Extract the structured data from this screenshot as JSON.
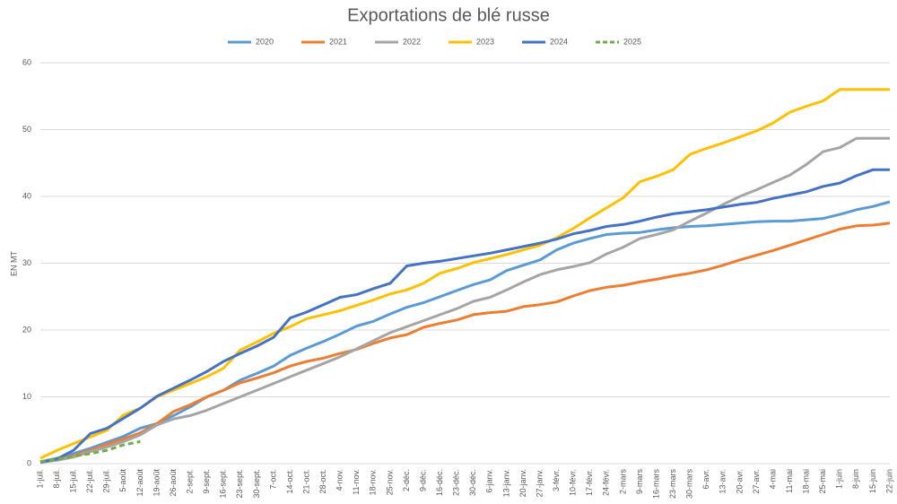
{
  "chart_data": {
    "type": "line",
    "title": "Exportations de blé russe",
    "y_label": "EN MT",
    "categories": [
      "1-juil.",
      "8-juil.",
      "15-juil.",
      "22-juil.",
      "29-juil.",
      "5-août",
      "12-août",
      "19-août",
      "26-août",
      "2-sept.",
      "9-sept.",
      "16-sept.",
      "23-sept.",
      "30-sept.",
      "7-oct.",
      "14-oct.",
      "21-oct.",
      "28-oct.",
      "4-nov.",
      "11-nov.",
      "18-nov.",
      "25-nov.",
      "2-déc.",
      "9-déc.",
      "16-déc.",
      "23-déc.",
      "30-déc.",
      "6-janv.",
      "13-janv.",
      "20-janv.",
      "27-janv.",
      "3-févr.",
      "10-févr.",
      "17-févr.",
      "24-févr.",
      "2-mars",
      "9-mars",
      "16-mars",
      "23-mars",
      "30-mars",
      "6-avr.",
      "13-avr.",
      "20-avr.",
      "27-avr.",
      "4-mai",
      "11-mai",
      "18-mai",
      "25-mai",
      "1-juin",
      "8-juin",
      "15-juin",
      "22-juin"
    ],
    "series": [
      {
        "name": "2020",
        "color": "#5b9bd5",
        "values": [
          0.3,
          0.8,
          1.5,
          2.3,
          3.2,
          4.1,
          5.3,
          6.0,
          7.2,
          8.5,
          10.0,
          11.0,
          12.5,
          13.5,
          14.6,
          16.2,
          17.3,
          18.3,
          19.4,
          20.6,
          21.3,
          22.4,
          23.4,
          24.1,
          25.0,
          25.9,
          26.8,
          27.5,
          28.9,
          29.7,
          30.5,
          32.0,
          33.0,
          33.7,
          34.3,
          34.5,
          34.6,
          35.0,
          35.3,
          35.5,
          35.6,
          35.8,
          36.0,
          36.2,
          36.3,
          36.3,
          36.5,
          36.7,
          37.3,
          38.0,
          38.5,
          39.2
        ]
      },
      {
        "name": "2021",
        "color": "#ed7d31",
        "values": [
          0.3,
          0.6,
          1.2,
          2.0,
          2.9,
          3.7,
          4.6,
          6.0,
          7.8,
          8.8,
          10.0,
          11.0,
          12.1,
          12.8,
          13.6,
          14.6,
          15.3,
          15.8,
          16.5,
          17.1,
          18.0,
          18.8,
          19.3,
          20.4,
          21.0,
          21.5,
          22.3,
          22.6,
          22.8,
          23.5,
          23.8,
          24.2,
          25.1,
          25.9,
          26.4,
          26.7,
          27.2,
          27.6,
          28.1,
          28.5,
          29.0,
          29.7,
          30.5,
          31.2,
          31.9,
          32.7,
          33.5,
          34.3,
          35.1,
          35.6,
          35.7,
          36.0
        ]
      },
      {
        "name": "2022",
        "color": "#a5a5a5",
        "values": [
          0.2,
          0.5,
          1.0,
          1.8,
          2.5,
          3.3,
          4.3,
          5.8,
          6.7,
          7.2,
          8.0,
          9.0,
          10.0,
          11.0,
          12.0,
          13.0,
          14.0,
          15.0,
          16.0,
          17.2,
          18.4,
          19.6,
          20.5,
          21.4,
          22.3,
          23.2,
          24.3,
          24.9,
          26.0,
          27.2,
          28.3,
          29.0,
          29.5,
          30.1,
          31.4,
          32.4,
          33.7,
          34.3,
          35.0,
          36.3,
          37.5,
          38.8,
          40.0,
          41.0,
          42.1,
          43.2,
          44.8,
          46.7,
          47.3,
          48.7,
          48.7,
          48.7
        ]
      },
      {
        "name": "2023",
        "color": "#ffc000",
        "values": [
          0.8,
          2.0,
          3.0,
          4.0,
          5.0,
          7.3,
          8.3,
          10.0,
          11.0,
          12.0,
          13.0,
          14.3,
          17.0,
          18.2,
          19.5,
          20.5,
          21.7,
          22.3,
          22.9,
          23.7,
          24.5,
          25.4,
          26.0,
          27.0,
          28.5,
          29.2,
          30.1,
          30.7,
          31.3,
          32.0,
          32.7,
          33.8,
          35.2,
          36.8,
          38.3,
          39.8,
          42.2,
          43.0,
          44.0,
          46.3,
          47.2,
          48.0,
          48.9,
          49.8,
          51.0,
          52.6,
          53.5,
          54.3,
          56.0,
          56.0,
          56.0,
          56.0
        ]
      },
      {
        "name": "2024",
        "color": "#4472c4",
        "values": [
          0.2,
          0.7,
          2.0,
          4.5,
          5.3,
          6.8,
          8.3,
          10.1,
          11.3,
          12.5,
          13.8,
          15.3,
          16.5,
          17.6,
          18.9,
          21.8,
          22.7,
          23.8,
          24.9,
          25.3,
          26.2,
          27.0,
          29.6,
          30.0,
          30.3,
          30.7,
          31.1,
          31.5,
          32.0,
          32.5,
          33.0,
          33.6,
          34.4,
          34.9,
          35.5,
          35.8,
          36.3,
          36.9,
          37.4,
          37.7,
          38.0,
          38.4,
          38.8,
          39.1,
          39.7,
          40.2,
          40.7,
          41.5,
          42.0,
          43.1,
          44.0,
          44.0
        ]
      },
      {
        "name": "2025",
        "color": "#70ad47",
        "dashed": true,
        "values": [
          0.3,
          0.7,
          1.1,
          1.5,
          2.0,
          2.8,
          3.3,
          null,
          null,
          null,
          null,
          null,
          null,
          null,
          null,
          null,
          null,
          null,
          null,
          null,
          null,
          null,
          null,
          null,
          null,
          null,
          null,
          null,
          null,
          null,
          null,
          null,
          null,
          null,
          null,
          null,
          null,
          null,
          null,
          null,
          null,
          null,
          null,
          null,
          null,
          null,
          null,
          null,
          null,
          null,
          null,
          null
        ]
      }
    ],
    "ylim": [
      0,
      60
    ],
    "yticks": [
      0,
      10,
      20,
      30,
      40,
      50,
      60
    ],
    "grid": true,
    "legend": "top"
  }
}
